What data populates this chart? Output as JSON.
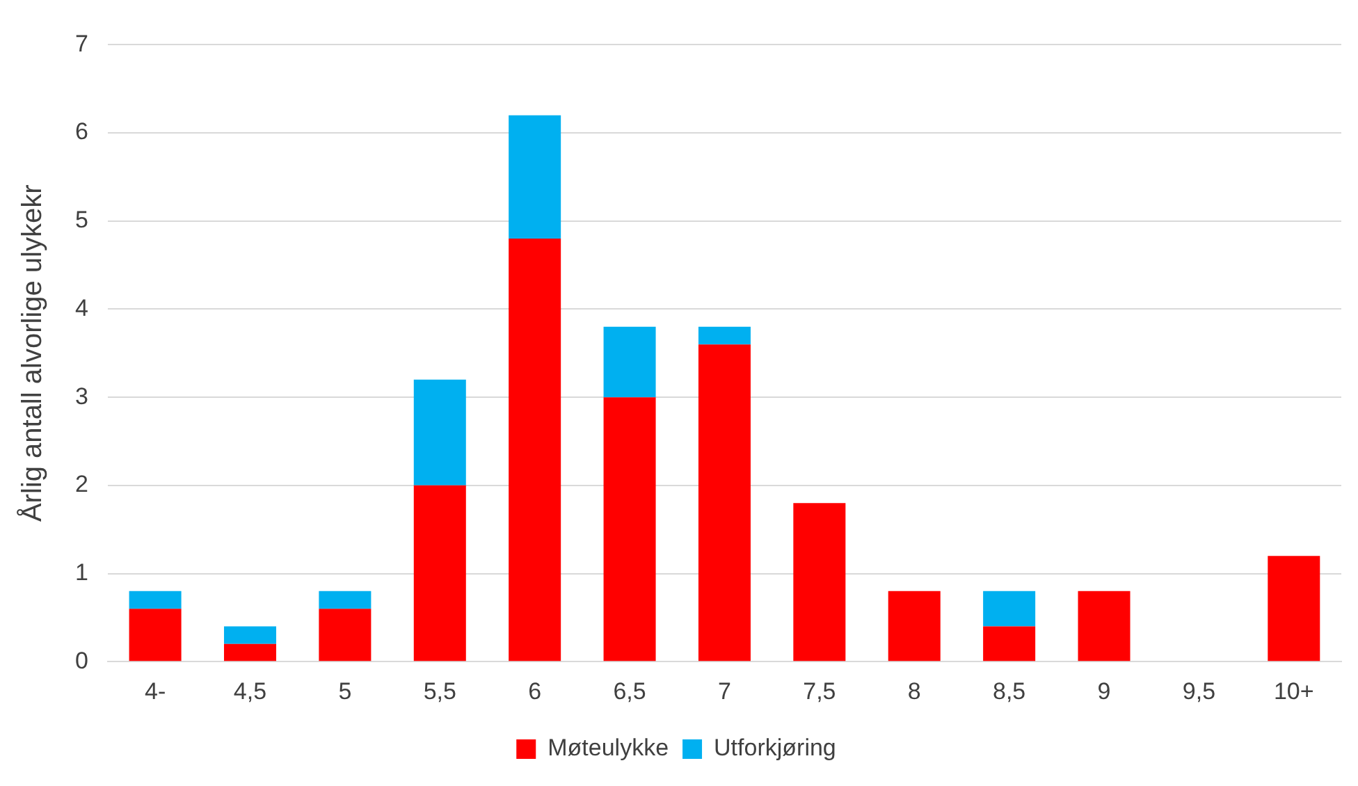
{
  "chart_data": {
    "type": "bar",
    "stacked": true,
    "ylabel": "Årlig antall alvorlige ulykekr",
    "categories": [
      "4-",
      "4,5",
      "5",
      "5,5",
      "6",
      "6,5",
      "7",
      "7,5",
      "8",
      "8,5",
      "9",
      "9,5",
      "10+"
    ],
    "series": [
      {
        "name": "Møteulykke",
        "color": "#ff0000",
        "values": [
          0.6,
          0.2,
          0.6,
          2,
          4.8,
          3,
          3.6,
          1.8,
          0.8,
          0.4,
          0.8,
          0,
          1.2
        ]
      },
      {
        "name": "Utforkjøring",
        "color": "#00b0f0",
        "values": [
          0.2,
          0.2,
          0.2,
          1.2,
          1.4,
          0.8,
          0.2,
          0,
          0,
          0.4,
          0,
          0,
          0
        ]
      }
    ],
    "ylim": [
      0,
      7
    ],
    "yticks": [
      0,
      1,
      2,
      3,
      4,
      5,
      6,
      7
    ],
    "grid": "y",
    "legend": "bottom"
  }
}
